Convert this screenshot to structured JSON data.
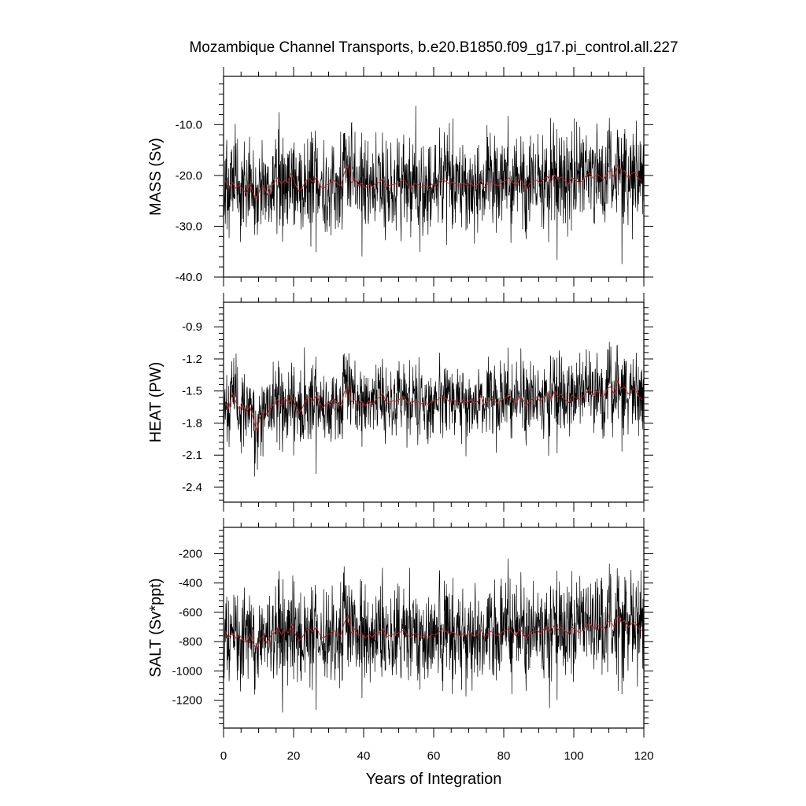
{
  "title": "Mozambique Channel Transports, b.e20.B1850.f09_g17.pi_control.all.227",
  "chart_data": [
    {
      "type": "line",
      "ylabel": "MASS (Sv)",
      "xlabel": "",
      "xlim": [
        0,
        120
      ],
      "ylim": [
        -40.0,
        -0.5
      ],
      "yticks": [
        -40.0,
        -30.0,
        -20.0,
        -10.0
      ],
      "ytick_labels": [
        "-40.0",
        "-30.0",
        "-20.0",
        "-10.0"
      ],
      "grid": false,
      "series": [
        {
          "role": "monthly",
          "color": "#000000",
          "mean": -22.0,
          "amplitude": 6.0,
          "x_start": 0,
          "x_end": 120,
          "samples": 1440
        },
        {
          "role": "annual",
          "color": "#d42020",
          "values": [
            -21.0,
            -22.3,
            -21.4,
            -22.5,
            -21.9,
            -22.8,
            -23.5,
            -21.7,
            -23.6,
            -24.7,
            -22.6,
            -21.9,
            -23.8,
            -22.1,
            -21.5,
            -20.4,
            -21.7,
            -20.9,
            -21.4,
            -19.7,
            -21.8,
            -23.1,
            -22.4,
            -21.0,
            -20.6,
            -21.3,
            -20.3,
            -21.9,
            -22.7,
            -21.8,
            -21.6,
            -20.9,
            -21.6,
            -22.0,
            -19.5,
            -18.0,
            -21.4,
            -20.8,
            -22.0,
            -21.6,
            -22.5,
            -21.7,
            -22.3,
            -21.5,
            -21.4,
            -20.6,
            -22.3,
            -21.9,
            -21.8,
            -21.6,
            -21.3,
            -20.8,
            -21.9,
            -22.4,
            -21.6,
            -21.8,
            -22.3,
            -21.9,
            -22.4,
            -21.7,
            -21.9,
            -21.3,
            -20.7,
            -21.2,
            -21.7,
            -21.3,
            -21.8,
            -22.0,
            -21.5,
            -21.9,
            -21.4,
            -22.2,
            -21.8,
            -20.9,
            -22.4,
            -21.6,
            -21.1,
            -21.8,
            -22.0,
            -21.3,
            -21.0,
            -20.5,
            -21.4,
            -22.0,
            -20.7,
            -21.4,
            -22.6,
            -21.5,
            -21.2,
            -20.9,
            -21.6,
            -20.7,
            -20.2,
            -21.4,
            -19.9,
            -20.8,
            -20.3,
            -21.1,
            -21.7,
            -20.4,
            -20.9,
            -21.4,
            -21.0,
            -20.1,
            -19.5,
            -20.6,
            -19.7,
            -20.2,
            -20.9,
            -19.5,
            -19.0,
            -20.4,
            -18.0,
            -19.3,
            -19.0,
            -20.4,
            -19.6,
            -19.4,
            -20.6,
            -21.0
          ]
        }
      ]
    },
    {
      "type": "line",
      "ylabel": "HEAT (PW)",
      "xlabel": "",
      "xlim": [
        0,
        120
      ],
      "ylim": [
        -2.54,
        -0.67
      ],
      "yticks": [
        -2.4,
        -2.1,
        -1.8,
        -1.5,
        -1.2,
        -0.9
      ],
      "ytick_labels": [
        "-2.4",
        "-2.1",
        "-1.8",
        "-1.5",
        "-1.2",
        "-0.9"
      ],
      "grid": false,
      "series": [
        {
          "role": "monthly",
          "color": "#000000",
          "mean": -1.6,
          "amplitude": 0.22,
          "x_start": 0,
          "x_end": 120,
          "samples": 1440
        },
        {
          "role": "annual",
          "color": "#d42020",
          "values": [
            -1.62,
            -1.66,
            -1.52,
            -1.6,
            -1.67,
            -1.63,
            -1.7,
            -1.64,
            -1.76,
            -1.88,
            -1.74,
            -1.69,
            -1.72,
            -1.66,
            -1.61,
            -1.58,
            -1.64,
            -1.56,
            -1.62,
            -1.55,
            -1.63,
            -1.71,
            -1.66,
            -1.58,
            -1.55,
            -1.6,
            -1.54,
            -1.62,
            -1.66,
            -1.6,
            -1.63,
            -1.57,
            -1.61,
            -1.64,
            -1.51,
            -1.46,
            -1.6,
            -1.58,
            -1.63,
            -1.6,
            -1.64,
            -1.59,
            -1.63,
            -1.58,
            -1.56,
            -1.52,
            -1.62,
            -1.6,
            -1.59,
            -1.6,
            -1.57,
            -1.55,
            -1.61,
            -1.63,
            -1.59,
            -1.6,
            -1.62,
            -1.6,
            -1.63,
            -1.59,
            -1.6,
            -1.57,
            -1.54,
            -1.57,
            -1.6,
            -1.58,
            -1.6,
            -1.62,
            -1.58,
            -1.61,
            -1.58,
            -1.62,
            -1.6,
            -1.55,
            -1.63,
            -1.59,
            -1.57,
            -1.6,
            -1.62,
            -1.58,
            -1.57,
            -1.53,
            -1.58,
            -1.62,
            -1.55,
            -1.58,
            -1.64,
            -1.59,
            -1.57,
            -1.56,
            -1.6,
            -1.55,
            -1.52,
            -1.58,
            -1.5,
            -1.55,
            -1.53,
            -1.58,
            -1.61,
            -1.54,
            -1.56,
            -1.58,
            -1.56,
            -1.52,
            -1.48,
            -1.54,
            -1.5,
            -1.52,
            -1.56,
            -1.48,
            -1.46,
            -1.53,
            -1.4,
            -1.48,
            -1.46,
            -1.53,
            -1.49,
            -1.48,
            -1.55,
            -1.58
          ]
        }
      ]
    },
    {
      "type": "line",
      "ylabel": "SALT (Sv*ppt)",
      "xlabel": "Years of Integration",
      "xlim": [
        0,
        120
      ],
      "xticks": [
        0,
        20,
        40,
        60,
        80,
        100,
        120
      ],
      "xtick_labels": [
        "0",
        "20",
        "40",
        "60",
        "80",
        "100",
        "120"
      ],
      "ylim": [
        -1390,
        -20
      ],
      "yticks": [
        -1200,
        -1000,
        -800,
        -600,
        -400,
        -200
      ],
      "ytick_labels": [
        "-1200",
        "-1000",
        "-800",
        "-600",
        "-400",
        "-200"
      ],
      "grid": false,
      "series": [
        {
          "role": "monthly",
          "color": "#000000",
          "mean": -760,
          "amplitude": 210,
          "x_start": 0,
          "x_end": 120,
          "samples": 1440
        },
        {
          "role": "annual",
          "color": "#d42020",
          "values": [
            -730,
            -770,
            -740,
            -775,
            -755,
            -785,
            -810,
            -750,
            -815,
            -850,
            -780,
            -755,
            -820,
            -760,
            -740,
            -705,
            -750,
            -720,
            -740,
            -680,
            -750,
            -795,
            -770,
            -725,
            -710,
            -735,
            -700,
            -755,
            -780,
            -750,
            -745,
            -720,
            -745,
            -760,
            -670,
            -620,
            -740,
            -715,
            -760,
            -745,
            -775,
            -750,
            -770,
            -740,
            -738,
            -710,
            -770,
            -755,
            -750,
            -745,
            -735,
            -718,
            -755,
            -772,
            -745,
            -750,
            -770,
            -755,
            -772,
            -748,
            -755,
            -735,
            -712,
            -730,
            -748,
            -735,
            -752,
            -760,
            -742,
            -755,
            -738,
            -765,
            -752,
            -720,
            -772,
            -745,
            -728,
            -752,
            -760,
            -735,
            -725,
            -708,
            -738,
            -760,
            -714,
            -738,
            -780,
            -742,
            -730,
            -720,
            -745,
            -714,
            -697,
            -738,
            -686,
            -717,
            -700,
            -728,
            -748,
            -704,
            -720,
            -738,
            -724,
            -693,
            -672,
            -710,
            -680,
            -697,
            -720,
            -672,
            -655,
            -704,
            -620,
            -666,
            -655,
            -704,
            -676,
            -669,
            -711,
            -725
          ]
        }
      ]
    }
  ]
}
